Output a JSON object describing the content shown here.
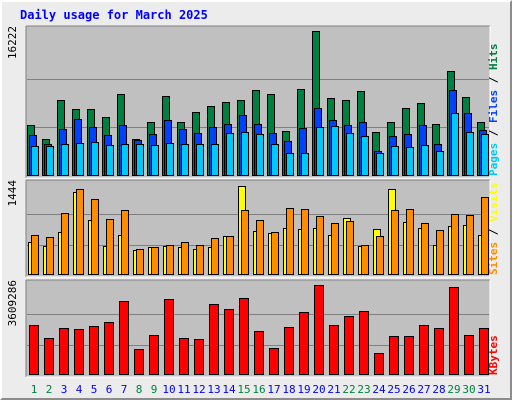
{
  "chart_data": {
    "type": "bar",
    "title": "Daily usage for March 2025",
    "categories": [
      "1",
      "2",
      "3",
      "4",
      "5",
      "6",
      "7",
      "8",
      "9",
      "10",
      "11",
      "12",
      "13",
      "14",
      "15",
      "16",
      "17",
      "18",
      "19",
      "20",
      "21",
      "22",
      "23",
      "24",
      "25",
      "26",
      "27",
      "28",
      "29",
      "30",
      "31"
    ],
    "weekend_days": [
      "1",
      "2",
      "8",
      "9",
      "15",
      "16",
      "22",
      "23",
      "29",
      "30"
    ],
    "panels": [
      {
        "id": "hits-files-pages",
        "ymax_label": "16222",
        "ymax": 16222,
        "axis_label_parts": [
          "Pages",
          " / ",
          "Files",
          " / ",
          "Hits"
        ],
        "series": [
          {
            "name": "Hits",
            "values": [
              5650,
              4100,
              8400,
              7400,
              7400,
              6500,
              9100,
              4100,
              6000,
              8900,
              6000,
              7100,
              7800,
              8200,
              8400,
              9500,
              9100,
              5000,
              9700,
              16100,
              8700,
              8400,
              9400,
              4900,
              6000,
              7500,
              8100,
              5800,
              11700,
              8800,
              6000
            ]
          },
          {
            "name": "Files",
            "values": [
              4500,
              3500,
              5200,
              6300,
              5400,
              4500,
              5700,
              4000,
              4700,
              6200,
              5200,
              4800,
              5400,
              5800,
              6800,
              5800,
              4800,
              3900,
              5300,
              7500,
              6200,
              5700,
              6000,
              2800,
              4400,
              4700,
              5700,
              3600,
              9500,
              7000,
              5100
            ]
          },
          {
            "name": "Pages",
            "values": [
              3300,
              3300,
              3500,
              3700,
              3800,
              3400,
              3500,
              3500,
              3400,
              3700,
              3600,
              3600,
              3600,
              4800,
              4900,
              4700,
              3600,
              2500,
              2500,
              5400,
              5600,
              4800,
              4400,
              2500,
              3300,
              3200,
              3400,
              2800,
              7000,
              4900,
              4700
            ]
          }
        ]
      },
      {
        "id": "visits-sites",
        "ymax_label": "1444",
        "ymax": 1444,
        "axis_label_parts": [
          "Sites",
          " / ",
          "Visits"
        ],
        "series": [
          {
            "name": "Visits",
            "values": [
              530,
              460,
              690,
              1320,
              870,
              460,
              640,
              390,
              450,
              460,
              450,
              420,
              450,
              620,
              1410,
              700,
              670,
              740,
              730,
              740,
              640,
              910,
              460,
              730,
              1360,
              840,
              750,
              470,
              770,
              800,
              640
            ]
          },
          {
            "name": "Sites",
            "values": [
              640,
              600,
              980,
              1360,
              1200,
              890,
              1030,
              410,
              450,
              470,
              520,
              480,
              580,
              620,
              1030,
              870,
              690,
              1060,
              1050,
              940,
              820,
              850,
              470,
              620,
              1030,
              1050,
              830,
              720,
              970,
              950,
              1240
            ]
          }
        ]
      },
      {
        "id": "kbytes",
        "ymax_label": "3609286",
        "ymax": 3609286,
        "axis_label_parts": [
          "KBytes"
        ],
        "series": [
          {
            "name": "KBytes",
            "values": [
              1990000,
              1450000,
              1850000,
              1820000,
              1950000,
              2090000,
              2950000,
              1050000,
              1600000,
              3030000,
              1470000,
              1420000,
              2800000,
              2620000,
              3070000,
              1740000,
              1080000,
              1900000,
              2480000,
              3560000,
              1990000,
              2350000,
              2550000,
              880000,
              1550000,
              1560000,
              1970000,
              1880000,
              3480000,
              1580000,
              1870000
            ]
          }
        ]
      }
    ],
    "colors": {
      "hits": "#008040",
      "files": "#0040ff",
      "pages": "#00c8f8",
      "visits": "#ffff00",
      "sites": "#ff8c00",
      "kbytes": "#ff0000",
      "title": "#0000ff",
      "panel_bg": "#c0c0c0",
      "weekday_label": "#0000ff",
      "weekend_label": "#008040"
    }
  }
}
